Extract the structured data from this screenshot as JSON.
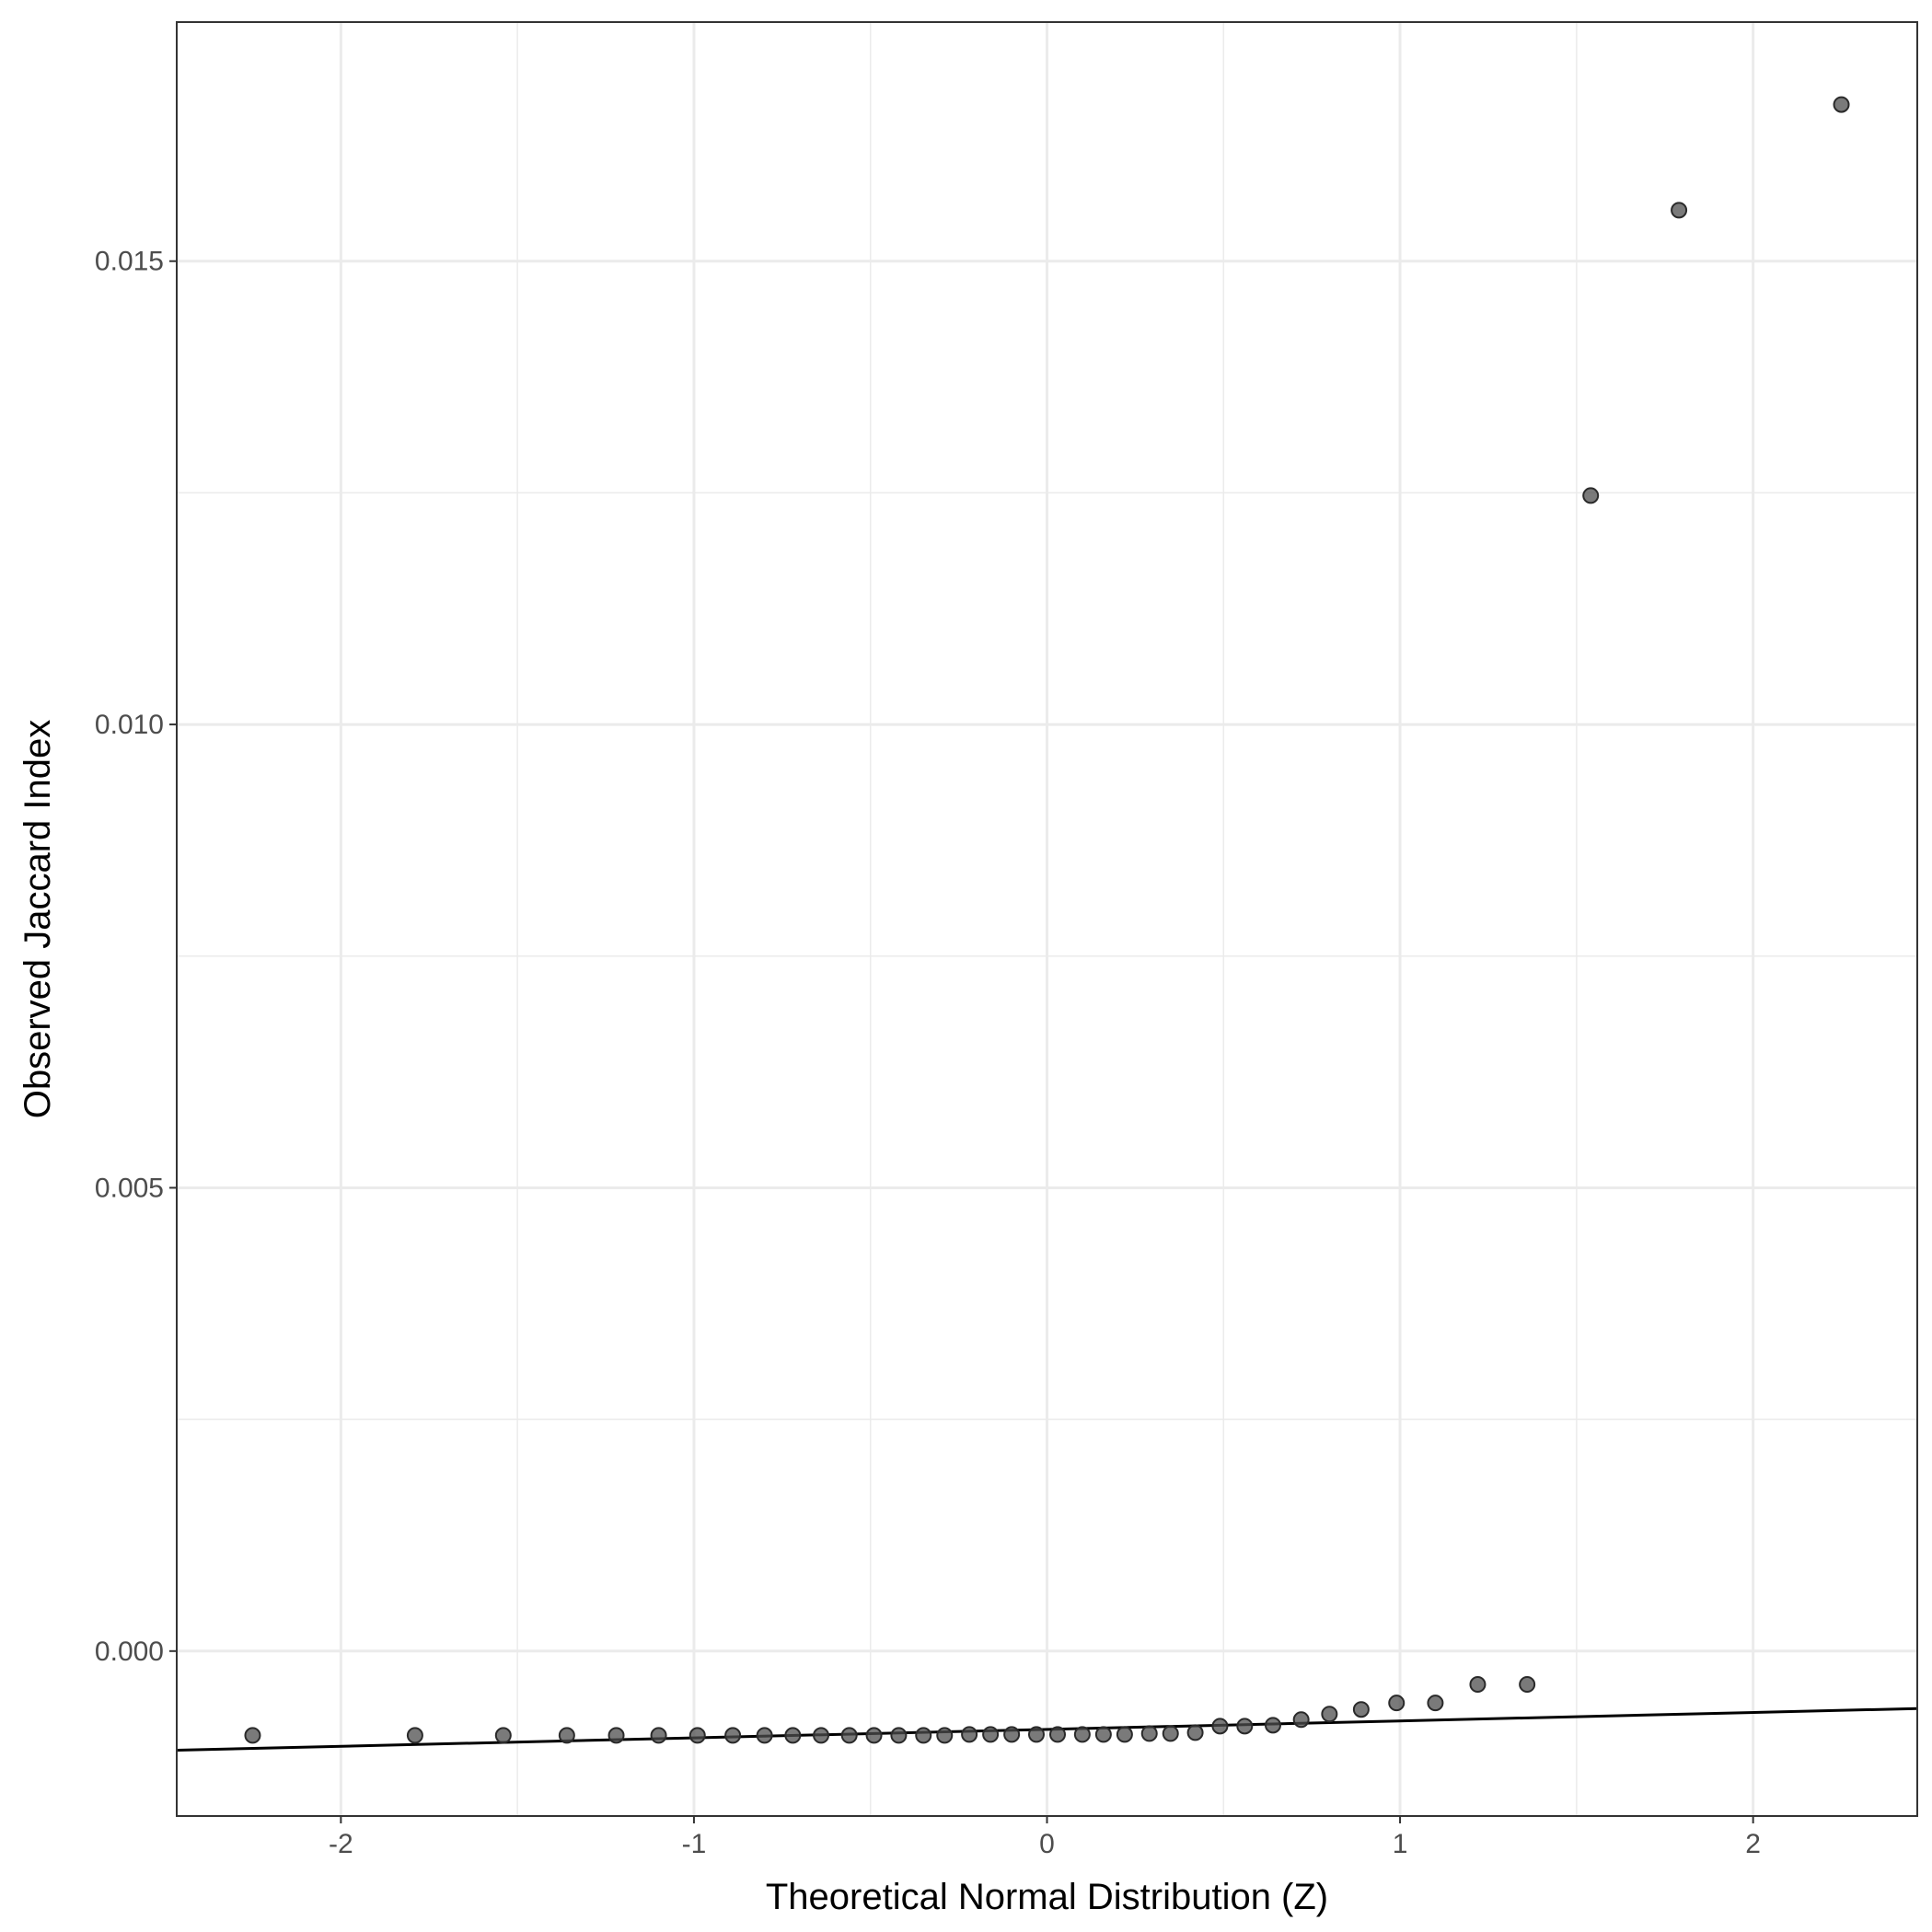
{
  "chart_data": {
    "type": "scatter",
    "title": "",
    "xlabel": "Theoretical Normal Distribution (Z)",
    "ylabel": "Observed Jaccard Index",
    "xlim": [
      -2.465,
      2.465
    ],
    "ylim": [
      -0.00178,
      0.01758
    ],
    "x_ticks": [
      -2,
      -1,
      0,
      1,
      2
    ],
    "x_tick_labels": [
      "-2",
      "-1",
      "0",
      "1",
      "2"
    ],
    "y_ticks": [
      0.0,
      0.005,
      0.01,
      0.015
    ],
    "y_tick_labels": [
      "0.000",
      "0.005",
      "0.010",
      "0.015"
    ],
    "grid": true,
    "legend": "none",
    "reference_line": {
      "x": [
        -2.465,
        2.465
      ],
      "y": [
        -0.00107,
        -0.00062
      ]
    },
    "points": {
      "x": [
        -2.25,
        -1.79,
        -1.54,
        -1.36,
        -1.22,
        -1.1,
        -0.99,
        -0.89,
        -0.8,
        -0.72,
        -0.64,
        -0.56,
        -0.49,
        -0.42,
        -0.35,
        -0.29,
        -0.22,
        -0.16,
        -0.1,
        -0.03,
        0.03,
        0.1,
        0.16,
        0.22,
        0.29,
        0.35,
        0.42,
        0.49,
        0.56,
        0.64,
        0.72,
        0.8,
        0.89,
        0.99,
        1.1,
        1.22,
        1.36,
        1.54,
        1.79,
        2.25
      ],
      "y": [
        -0.00091,
        -0.00091,
        -0.00091,
        -0.00091,
        -0.00091,
        -0.00091,
        -0.00091,
        -0.00091,
        -0.00091,
        -0.00091,
        -0.00091,
        -0.00091,
        -0.00091,
        -0.00091,
        -0.00091,
        -0.00091,
        -0.0009,
        -0.0009,
        -0.0009,
        -0.0009,
        -0.0009,
        -0.0009,
        -0.0009,
        -0.0009,
        -0.00089,
        -0.00089,
        -0.00088,
        -0.00081,
        -0.00081,
        -0.0008,
        -0.00074,
        -0.00068,
        -0.00063,
        -0.00056,
        -0.00056,
        -0.00036,
        -0.00036,
        0.01247,
        0.01555,
        0.01669
      ]
    },
    "colors": {
      "points": "#4d4d4d",
      "line": "#000000",
      "grid": "#ebebeb",
      "panel_border": "#333333"
    }
  }
}
